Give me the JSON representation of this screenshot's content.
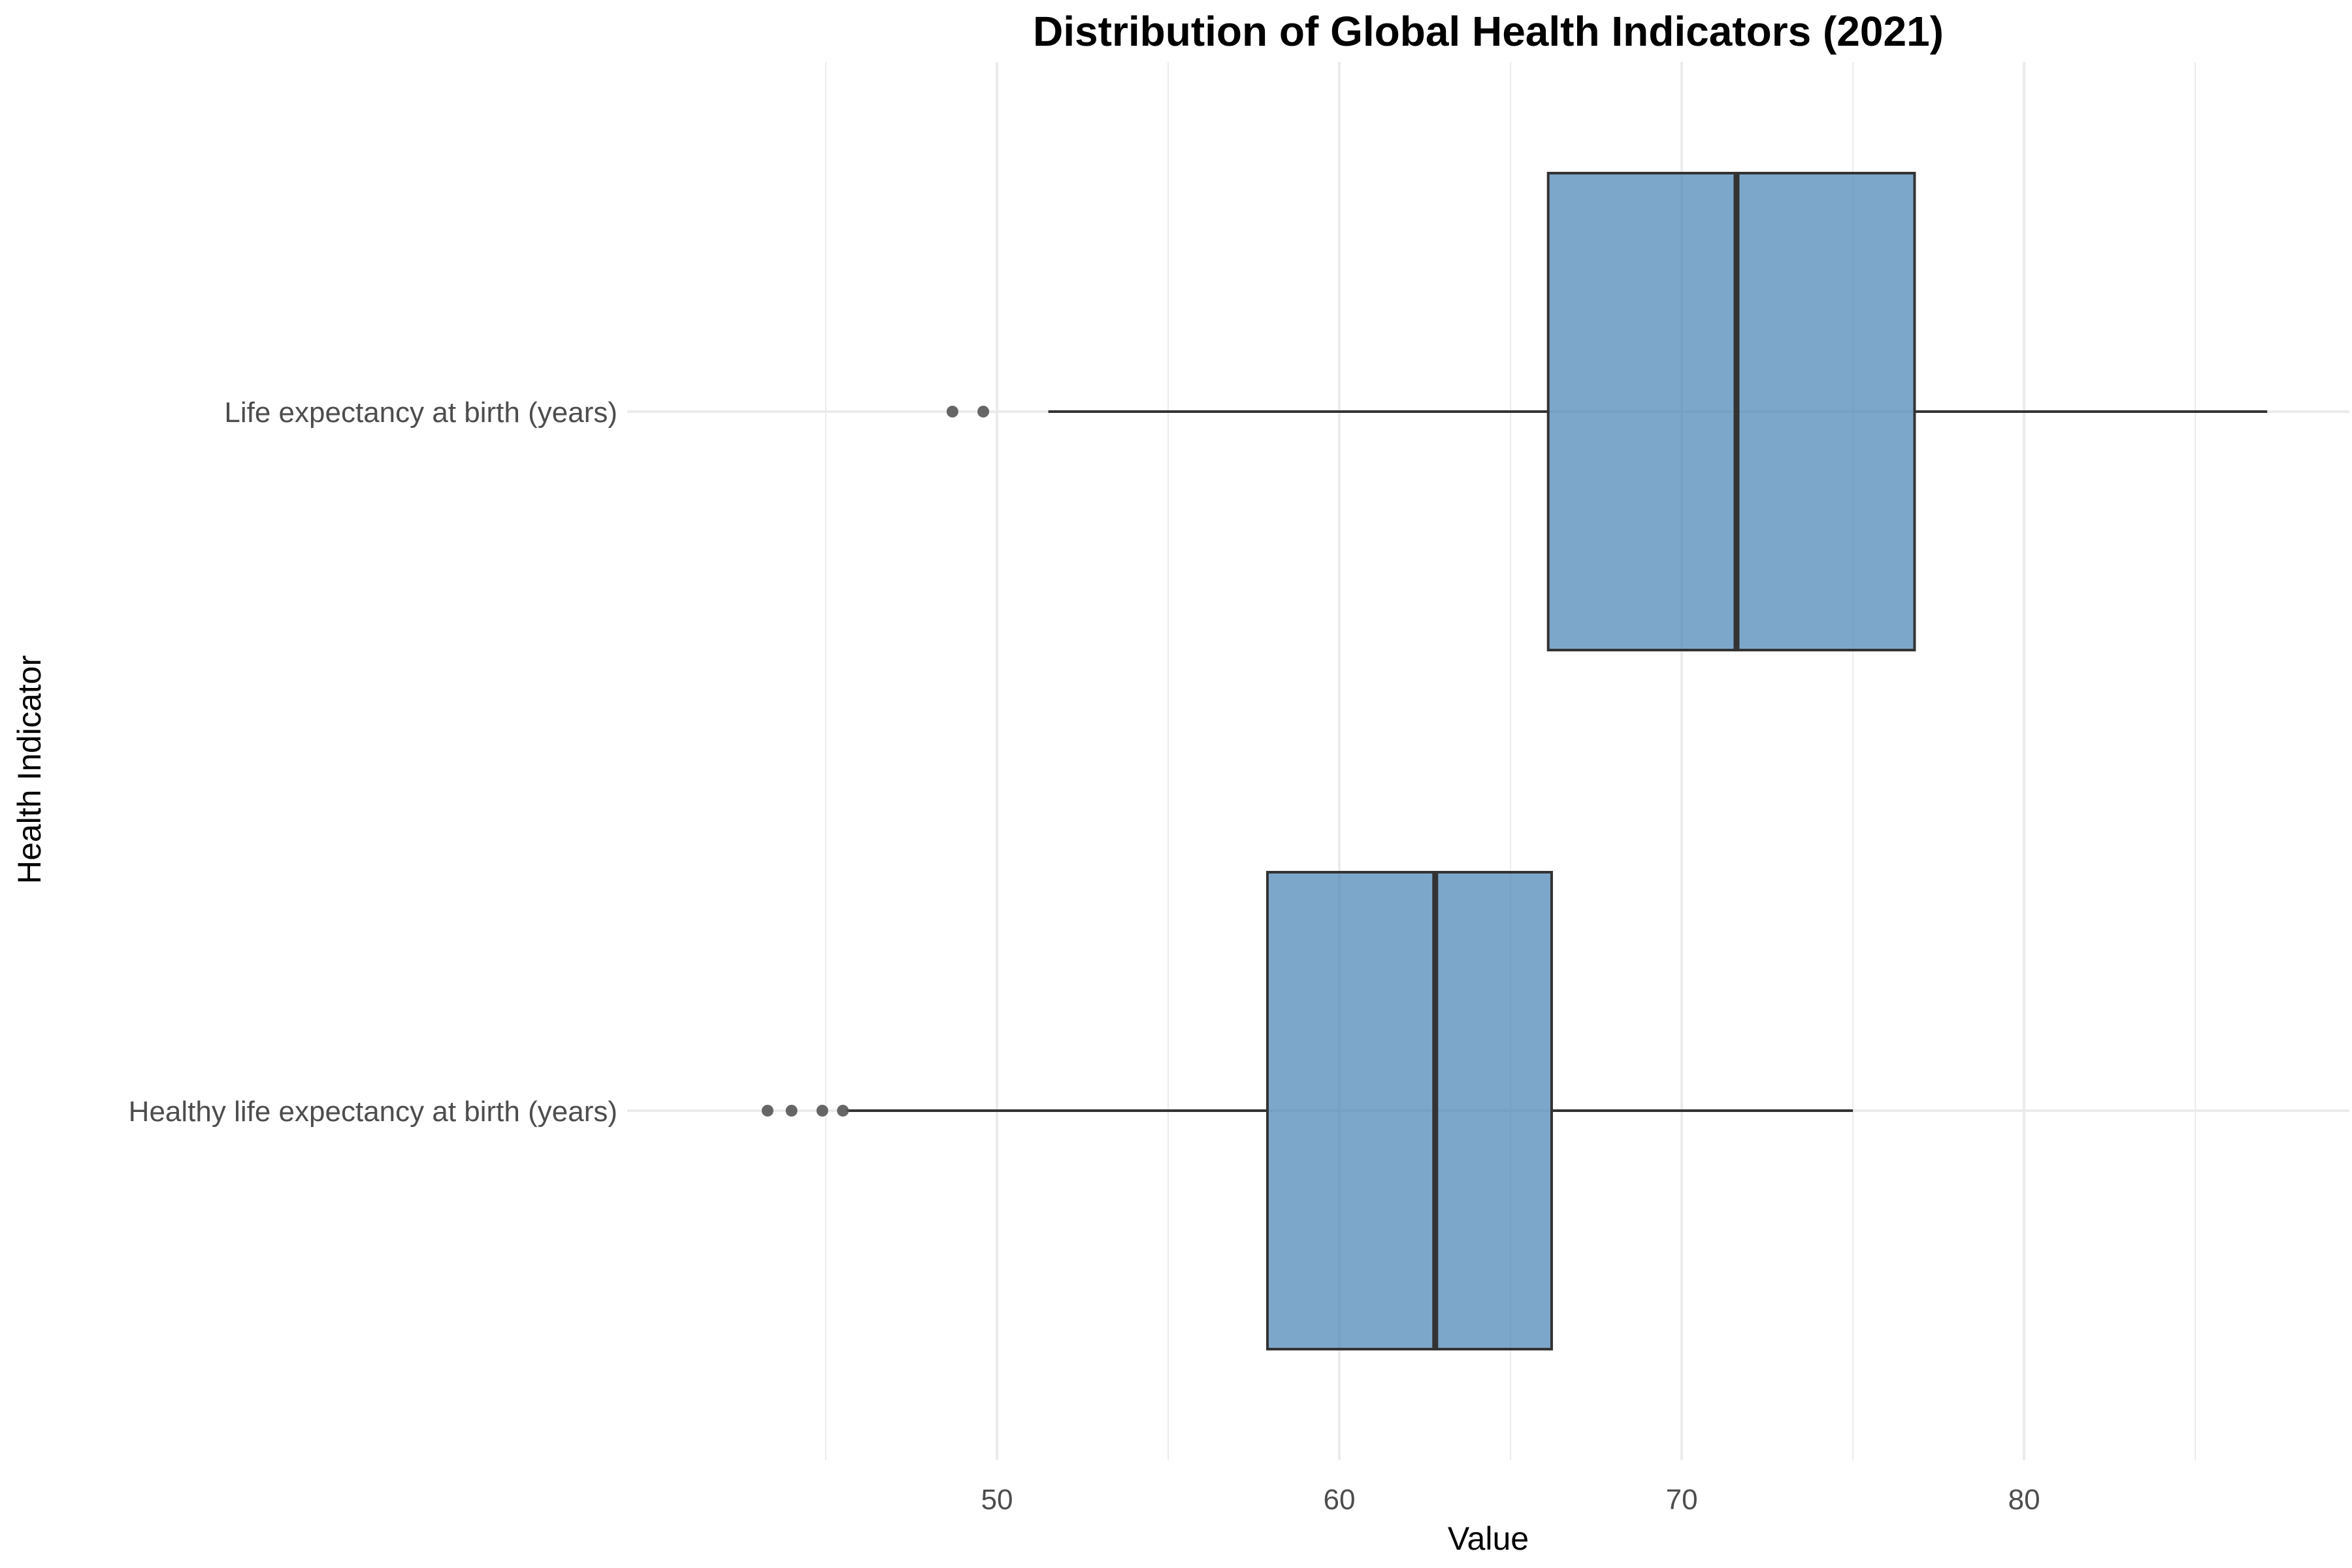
{
  "chart_data": {
    "type": "boxplot",
    "orientation": "horizontal",
    "title": "Distribution of Global Health Indicators (2021)",
    "xlabel": "Value",
    "ylabel": "Health Indicator",
    "xlim": [
      39.2,
      89.5
    ],
    "x_ticks": [
      50,
      60,
      70,
      80
    ],
    "x_minor_ticks": [
      45,
      55,
      65,
      75,
      85
    ],
    "categories": [
      "Life expectancy at birth (years)",
      "Healthy life expectancy at birth (years)"
    ],
    "series": [
      {
        "category": "Life expectancy at birth (years)",
        "whisker_low": 51.5,
        "q1": 66.1,
        "median": 71.6,
        "q3": 76.8,
        "whisker_high": 87.1,
        "outliers": [
          48.7,
          49.6
        ]
      },
      {
        "category": "Healthy life expectancy at birth (years)",
        "whisker_low": 45.6,
        "q1": 57.9,
        "median": 62.8,
        "q3": 66.2,
        "whisker_high": 75.0,
        "outliers": [
          43.3,
          44.0,
          44.9,
          45.5
        ]
      }
    ],
    "grid": true,
    "legend": "none",
    "box_color": "#4682b4",
    "box_edge_color": "#333333",
    "outlier_color": "#555555",
    "grid_color": "#ebebeb"
  }
}
